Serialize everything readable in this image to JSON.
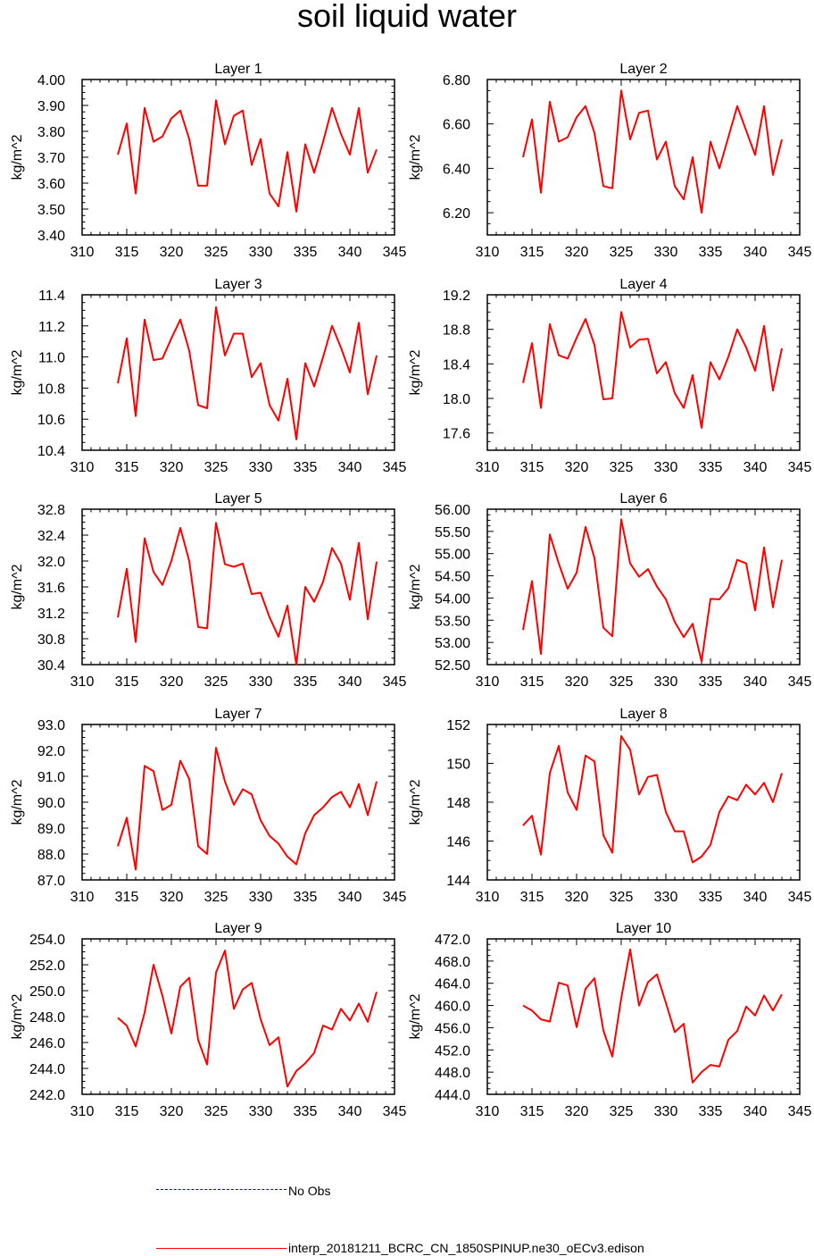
{
  "title": "soil liquid water",
  "line_color": "#ff0000",
  "obs_color": "#0000ff",
  "legend": {
    "obs_label": "No Obs",
    "model_label": "interp_20181211_BCRC_CN_1850SPINUP.ne30_oECv3.edison"
  },
  "chart_data": [
    {
      "type": "line",
      "title": "Layer 1",
      "ylabel": "kg/m^2",
      "xlim": [
        310,
        345
      ],
      "ylim": [
        3.4,
        4.0
      ],
      "xticks": [
        "310",
        "315",
        "320",
        "325",
        "330",
        "335",
        "340",
        "345"
      ],
      "yticks": [
        "3.40",
        "3.50",
        "3.60",
        "3.70",
        "3.80",
        "3.90",
        "4.00"
      ],
      "series": [
        {
          "x": [
            314,
            315,
            316,
            317,
            318,
            319,
            320,
            321,
            322,
            323,
            324,
            325,
            326,
            327,
            328,
            329,
            330,
            331,
            332,
            333,
            334,
            335,
            336,
            337,
            338,
            339,
            340,
            341,
            342,
            343
          ],
          "values": [
            3.71,
            3.83,
            3.56,
            3.89,
            3.76,
            3.78,
            3.85,
            3.88,
            3.77,
            3.59,
            3.59,
            3.92,
            3.75,
            3.86,
            3.88,
            3.67,
            3.77,
            3.56,
            3.51,
            3.72,
            3.49,
            3.75,
            3.64,
            3.76,
            3.89,
            3.79,
            3.71,
            3.89,
            3.64,
            3.73
          ]
        }
      ]
    },
    {
      "type": "line",
      "title": "Layer 2",
      "ylabel": "kg/m^2",
      "xlim": [
        310,
        345
      ],
      "ylim": [
        6.1,
        6.8
      ],
      "xticks": [
        "310",
        "315",
        "320",
        "325",
        "330",
        "335",
        "340",
        "345"
      ],
      "yticks": [
        "6.20",
        "6.40",
        "6.60",
        "6.80"
      ],
      "series": [
        {
          "x": [
            314,
            315,
            316,
            317,
            318,
            319,
            320,
            321,
            322,
            323,
            324,
            325,
            326,
            327,
            328,
            329,
            330,
            331,
            332,
            333,
            334,
            335,
            336,
            337,
            338,
            339,
            340,
            341,
            342,
            343
          ],
          "values": [
            6.45,
            6.62,
            6.29,
            6.7,
            6.52,
            6.54,
            6.63,
            6.68,
            6.56,
            6.32,
            6.31,
            6.75,
            6.53,
            6.65,
            6.66,
            6.44,
            6.52,
            6.32,
            6.26,
            6.45,
            6.2,
            6.52,
            6.4,
            6.54,
            6.68,
            6.57,
            6.46,
            6.68,
            6.37,
            6.53
          ]
        }
      ]
    },
    {
      "type": "line",
      "title": "Layer 3",
      "ylabel": "kg/m^2",
      "xlim": [
        310,
        345
      ],
      "ylim": [
        10.4,
        11.4
      ],
      "xticks": [
        "310",
        "315",
        "320",
        "325",
        "330",
        "335",
        "340",
        "345"
      ],
      "yticks": [
        "10.4",
        "10.6",
        "10.8",
        "11.0",
        "11.2",
        "11.4"
      ],
      "series": [
        {
          "x": [
            314,
            315,
            316,
            317,
            318,
            319,
            320,
            321,
            322,
            323,
            324,
            325,
            326,
            327,
            328,
            329,
            330,
            331,
            332,
            333,
            334,
            335,
            336,
            337,
            338,
            339,
            340,
            341,
            342,
            343
          ],
          "values": [
            10.83,
            11.12,
            10.62,
            11.24,
            10.98,
            10.99,
            11.12,
            11.24,
            11.04,
            10.69,
            10.67,
            11.32,
            11.01,
            11.15,
            11.15,
            10.87,
            10.96,
            10.69,
            10.59,
            10.86,
            10.47,
            10.96,
            10.81,
            11.0,
            11.2,
            11.06,
            10.9,
            11.22,
            10.76,
            11.01
          ]
        }
      ]
    },
    {
      "type": "line",
      "title": "Layer 4",
      "ylabel": "kg/m^2",
      "xlim": [
        310,
        345
      ],
      "ylim": [
        17.4,
        19.2
      ],
      "xticks": [
        "310",
        "315",
        "320",
        "325",
        "330",
        "335",
        "340",
        "345"
      ],
      "yticks": [
        "17.6",
        "18.0",
        "18.4",
        "18.8",
        "19.2"
      ],
      "series": [
        {
          "x": [
            314,
            315,
            316,
            317,
            318,
            319,
            320,
            321,
            322,
            323,
            324,
            325,
            326,
            327,
            328,
            329,
            330,
            331,
            332,
            333,
            334,
            335,
            336,
            337,
            338,
            339,
            340,
            341,
            342,
            343
          ],
          "values": [
            18.18,
            18.64,
            17.89,
            18.86,
            18.5,
            18.46,
            18.7,
            18.92,
            18.62,
            17.99,
            18.0,
            19.0,
            18.59,
            18.68,
            18.69,
            18.29,
            18.42,
            18.06,
            17.89,
            18.27,
            17.66,
            18.42,
            18.22,
            18.48,
            18.8,
            18.59,
            18.32,
            18.84,
            18.09,
            18.58
          ]
        }
      ]
    },
    {
      "type": "line",
      "title": "Layer 5",
      "ylabel": "kg/m^2",
      "xlim": [
        310,
        345
      ],
      "ylim": [
        30.4,
        32.8
      ],
      "xticks": [
        "310",
        "315",
        "320",
        "325",
        "330",
        "335",
        "340",
        "345"
      ],
      "yticks": [
        "30.4",
        "30.8",
        "31.2",
        "31.6",
        "32.0",
        "32.4",
        "32.8"
      ],
      "series": [
        {
          "x": [
            314,
            315,
            316,
            317,
            318,
            319,
            320,
            321,
            322,
            323,
            324,
            325,
            326,
            327,
            328,
            329,
            330,
            331,
            332,
            333,
            334,
            335,
            336,
            337,
            338,
            339,
            340,
            341,
            342,
            343
          ],
          "values": [
            31.13,
            31.88,
            30.75,
            32.35,
            31.83,
            31.63,
            32.0,
            32.51,
            32.0,
            30.98,
            30.96,
            32.59,
            31.95,
            31.91,
            31.96,
            31.49,
            31.51,
            31.13,
            30.83,
            31.31,
            30.4,
            31.6,
            31.37,
            31.68,
            32.2,
            31.96,
            31.4,
            32.28,
            31.1,
            31.99
          ]
        }
      ]
    },
    {
      "type": "line",
      "title": "Layer 6",
      "ylabel": "kg/m^2",
      "xlim": [
        310,
        345
      ],
      "ylim": [
        52.5,
        56.0
      ],
      "xticks": [
        "310",
        "315",
        "320",
        "325",
        "330",
        "335",
        "340",
        "345"
      ],
      "yticks": [
        "52.50",
        "53.00",
        "53.50",
        "54.00",
        "54.50",
        "55.00",
        "55.50",
        "56.00"
      ],
      "series": [
        {
          "x": [
            314,
            315,
            316,
            317,
            318,
            319,
            320,
            321,
            322,
            323,
            324,
            325,
            326,
            327,
            328,
            329,
            330,
            331,
            332,
            333,
            334,
            335,
            336,
            337,
            338,
            339,
            340,
            341,
            342,
            343
          ],
          "values": [
            53.28,
            54.38,
            52.74,
            55.43,
            54.78,
            54.21,
            54.57,
            55.6,
            54.9,
            53.33,
            53.14,
            55.77,
            54.78,
            54.48,
            54.65,
            54.26,
            53.97,
            53.46,
            53.12,
            53.42,
            52.57,
            53.98,
            53.97,
            54.22,
            54.86,
            54.78,
            53.72,
            55.14,
            53.79,
            54.86
          ]
        }
      ]
    },
    {
      "type": "line",
      "title": "Layer 7",
      "ylabel": "kg/m^2",
      "xlim": [
        310,
        345
      ],
      "ylim": [
        87.0,
        93.0
      ],
      "xticks": [
        "310",
        "315",
        "320",
        "325",
        "330",
        "335",
        "340",
        "345"
      ],
      "yticks": [
        "87.0",
        "88.0",
        "89.0",
        "90.0",
        "91.0",
        "92.0",
        "93.0"
      ],
      "series": [
        {
          "x": [
            314,
            315,
            316,
            317,
            318,
            319,
            320,
            321,
            322,
            323,
            324,
            325,
            326,
            327,
            328,
            329,
            330,
            331,
            332,
            333,
            334,
            335,
            336,
            337,
            338,
            339,
            340,
            341,
            342,
            343
          ],
          "values": [
            88.3,
            89.4,
            87.4,
            91.4,
            91.2,
            89.7,
            89.9,
            91.6,
            90.9,
            88.3,
            88.0,
            92.1,
            90.8,
            89.9,
            90.5,
            90.3,
            89.3,
            88.7,
            88.4,
            87.9,
            87.6,
            88.8,
            89.5,
            89.8,
            90.2,
            90.4,
            89.8,
            90.7,
            89.5,
            90.8
          ]
        }
      ]
    },
    {
      "type": "line",
      "title": "Layer 8",
      "ylabel": "kg/m^2",
      "xlim": [
        310,
        345
      ],
      "ylim": [
        144,
        152
      ],
      "xticks": [
        "310",
        "315",
        "320",
        "325",
        "330",
        "335",
        "340",
        "345"
      ],
      "yticks": [
        "144",
        "146",
        "148",
        "150",
        "152"
      ],
      "series": [
        {
          "x": [
            314,
            315,
            316,
            317,
            318,
            319,
            320,
            321,
            322,
            323,
            324,
            325,
            326,
            327,
            328,
            329,
            330,
            331,
            332,
            333,
            334,
            335,
            336,
            337,
            338,
            339,
            340,
            341,
            342,
            343
          ],
          "values": [
            146.8,
            147.3,
            145.3,
            149.5,
            150.9,
            148.5,
            147.6,
            150.4,
            150.1,
            146.3,
            145.4,
            151.4,
            150.7,
            148.4,
            149.3,
            149.4,
            147.5,
            146.5,
            146.5,
            144.9,
            145.2,
            145.8,
            147.5,
            148.3,
            148.1,
            148.9,
            148.4,
            149.0,
            148.0,
            149.5
          ]
        }
      ]
    },
    {
      "type": "line",
      "title": "Layer 9",
      "ylabel": "kg/m^2",
      "xlim": [
        310,
        345
      ],
      "ylim": [
        242.0,
        254.0
      ],
      "xticks": [
        "310",
        "315",
        "320",
        "325",
        "330",
        "335",
        "340",
        "345"
      ],
      "yticks": [
        "242.0",
        "244.0",
        "246.0",
        "248.0",
        "250.0",
        "252.0",
        "254.0"
      ],
      "series": [
        {
          "x": [
            314,
            315,
            316,
            317,
            318,
            319,
            320,
            321,
            322,
            323,
            324,
            325,
            326,
            327,
            328,
            329,
            330,
            331,
            332,
            333,
            334,
            335,
            336,
            337,
            338,
            339,
            340,
            341,
            342,
            343
          ],
          "values": [
            247.9,
            247.3,
            245.7,
            248.3,
            252.0,
            249.6,
            246.7,
            250.3,
            251.0,
            246.2,
            244.3,
            251.4,
            253.1,
            248.6,
            250.1,
            250.6,
            247.8,
            245.8,
            246.4,
            242.6,
            243.8,
            244.4,
            245.2,
            247.3,
            247.0,
            248.6,
            247.7,
            249.0,
            247.6,
            249.9
          ]
        }
      ]
    },
    {
      "type": "line",
      "title": "Layer 10",
      "ylabel": "kg/m^2",
      "xlim": [
        310,
        345
      ],
      "ylim": [
        444.0,
        472.0
      ],
      "xticks": [
        "310",
        "315",
        "320",
        "325",
        "330",
        "335",
        "340",
        "345"
      ],
      "yticks": [
        "444.0",
        "448.0",
        "452.0",
        "456.0",
        "460.0",
        "464.0",
        "468.0",
        "472.0"
      ],
      "series": [
        {
          "x": [
            314,
            315,
            316,
            317,
            318,
            319,
            320,
            321,
            322,
            323,
            324,
            325,
            326,
            327,
            328,
            329,
            330,
            331,
            332,
            333,
            334,
            335,
            336,
            337,
            338,
            339,
            340,
            341,
            342,
            343
          ],
          "values": [
            460.0,
            459.1,
            457.5,
            457.1,
            464.1,
            463.6,
            456.1,
            463.0,
            464.9,
            455.5,
            450.8,
            461.3,
            470.1,
            460.0,
            464.2,
            465.6,
            460.5,
            455.2,
            456.7,
            446.1,
            448.0,
            449.3,
            449.0,
            453.8,
            455.4,
            459.8,
            458.2,
            461.8,
            459.1,
            462.0
          ]
        }
      ]
    }
  ]
}
